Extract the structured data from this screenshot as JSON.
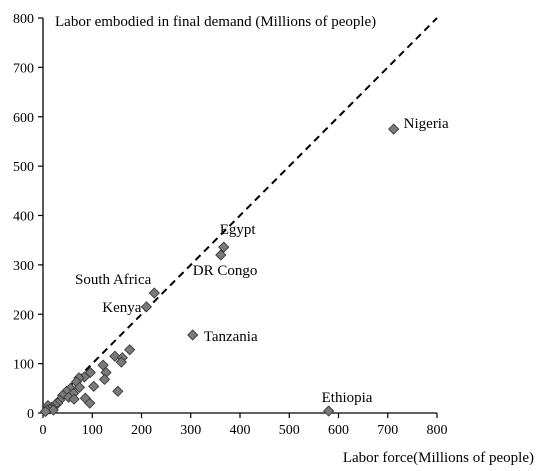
{
  "chart_data": {
    "type": "scatter",
    "ylabel": "Labor embodied in final demand (Millions of people)",
    "xlabel": "Labor force(Millions of people)",
    "xlim": [
      0,
      800
    ],
    "ylim": [
      0,
      800
    ],
    "xticks": [
      "0",
      "100",
      "200",
      "300",
      "400",
      "500",
      "600",
      "700",
      "800"
    ],
    "yticks": [
      "0",
      "100",
      "200",
      "300",
      "400",
      "500",
      "600",
      "700",
      "800"
    ],
    "grid": false,
    "reference_line": {
      "style": "dashed",
      "from": [
        0,
        0
      ],
      "to": [
        800,
        800
      ]
    },
    "marker": {
      "shape": "diamond",
      "color": "#7a7a7a",
      "stroke": "#3a3a3a"
    },
    "labeled_points": [
      {
        "label": "Nigeria",
        "x": 712,
        "y": 575
      },
      {
        "label": "Egypt",
        "x": 367,
        "y": 336
      },
      {
        "label": "DR Congo",
        "x": 361,
        "y": 320
      },
      {
        "label": "South Africa",
        "x": 226,
        "y": 243
      },
      {
        "label": "Kenya",
        "x": 210,
        "y": 215
      },
      {
        "label": "Tanzania",
        "x": 304,
        "y": 158
      },
      {
        "label": "Ethiopia",
        "x": 580,
        "y": 4
      }
    ],
    "points": [
      {
        "x": 712,
        "y": 575
      },
      {
        "x": 367,
        "y": 336
      },
      {
        "x": 361,
        "y": 320
      },
      {
        "x": 226,
        "y": 243
      },
      {
        "x": 210,
        "y": 215
      },
      {
        "x": 304,
        "y": 158
      },
      {
        "x": 580,
        "y": 4
      },
      {
        "x": 176,
        "y": 128
      },
      {
        "x": 146,
        "y": 115
      },
      {
        "x": 161,
        "y": 112
      },
      {
        "x": 159,
        "y": 103
      },
      {
        "x": 122,
        "y": 97
      },
      {
        "x": 128,
        "y": 82
      },
      {
        "x": 96,
        "y": 82
      },
      {
        "x": 84,
        "y": 73
      },
      {
        "x": 125,
        "y": 68
      },
      {
        "x": 73,
        "y": 71
      },
      {
        "x": 68,
        "y": 63
      },
      {
        "x": 103,
        "y": 54
      },
      {
        "x": 74,
        "y": 52
      },
      {
        "x": 56,
        "y": 50
      },
      {
        "x": 48,
        "y": 44
      },
      {
        "x": 62,
        "y": 40
      },
      {
        "x": 40,
        "y": 36
      },
      {
        "x": 52,
        "y": 32
      },
      {
        "x": 86,
        "y": 30
      },
      {
        "x": 34,
        "y": 26
      },
      {
        "x": 63,
        "y": 28
      },
      {
        "x": 95,
        "y": 20
      },
      {
        "x": 30,
        "y": 20
      },
      {
        "x": 24,
        "y": 16
      },
      {
        "x": 152,
        "y": 44
      },
      {
        "x": 18,
        "y": 12
      },
      {
        "x": 10,
        "y": 15
      },
      {
        "x": 14,
        "y": 8
      },
      {
        "x": 8,
        "y": 6
      },
      {
        "x": 21,
        "y": 6
      },
      {
        "x": 5,
        "y": 3
      }
    ]
  }
}
